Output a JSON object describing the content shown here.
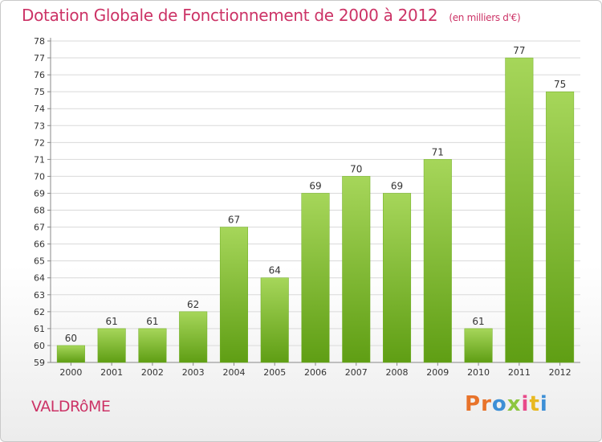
{
  "header": {
    "title": "Dotation Globale de Fonctionnement de 2000 à 2012",
    "unit_note": "(en milliers d'€)"
  },
  "footer": {
    "place": "VALDRôME",
    "brand": "Proxiti",
    "brand_colors": [
      "#e8732a",
      "#e8732a",
      "#3d8fd6",
      "#8cc63f",
      "#e84a8a",
      "#e8b820",
      "#3d8fd6"
    ]
  },
  "colors": {
    "accent": "#cc3366",
    "bar_top": "#a6d65a",
    "bar_bottom": "#5f9e14",
    "grid": "#d9d9d9"
  },
  "chart_data": {
    "type": "bar",
    "title": "Dotation Globale de Fonctionnement de 2000 à 2012",
    "categories": [
      "2000",
      "2001",
      "2002",
      "2003",
      "2004",
      "2005",
      "2006",
      "2007",
      "2008",
      "2009",
      "2010",
      "2011",
      "2012"
    ],
    "values": [
      60,
      61,
      61,
      62,
      67,
      64,
      69,
      70,
      69,
      71,
      61,
      77,
      75
    ],
    "xlabel": "",
    "ylabel": "",
    "ylim": [
      59,
      78
    ],
    "yticks": [
      59,
      60,
      61,
      62,
      63,
      64,
      65,
      66,
      67,
      68,
      69,
      70,
      71,
      72,
      73,
      74,
      75,
      76,
      77,
      78
    ],
    "grid": true,
    "legend": "none"
  }
}
